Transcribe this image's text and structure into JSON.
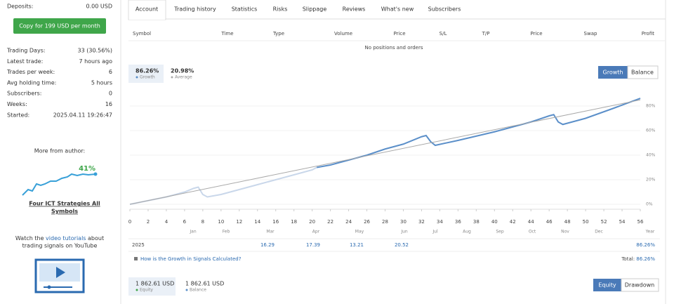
{
  "sidebar": {
    "deposits": {
      "label": "Deposits:",
      "value": "0.00 USD"
    },
    "copy_button": "Copy for 199 USD per month",
    "stats": [
      [
        "Trading Days:",
        "33 (30.56%)"
      ],
      [
        "Latest trade:",
        "7 hours ago"
      ],
      [
        "Trades per week:",
        "6"
      ],
      [
        "Avg holding time:",
        "5 hours"
      ],
      [
        "Subscribers:",
        "0"
      ],
      [
        "Weeks:",
        "16"
      ],
      [
        "Started:",
        "2025.04.11 19:26:47"
      ]
    ],
    "more_from_author": "More from author:",
    "author_signal": {
      "growth": "41%",
      "name_lines": [
        "Four ICT Strategies All",
        "Symbols"
      ]
    },
    "video_note": {
      "line1": [
        "Watch the ",
        "video tutorials",
        " about"
      ],
      "line2": "trading signals on YouTube"
    }
  },
  "tabs": [
    "Account",
    "Trading history",
    "Statistics",
    "Risks",
    "Slippage",
    "Reviews",
    "What's new",
    "Subscribers"
  ],
  "positions_table": {
    "columns": [
      "Symbol",
      "Time",
      "Type",
      "Volume",
      "Price",
      "S/L",
      "T/P",
      "Price",
      "Swap",
      "Profit"
    ],
    "empty_message": "No positions and orders"
  },
  "growth_summary": {
    "growth": {
      "value": "86.26%",
      "label": "Growth"
    },
    "average": {
      "value": "20.98%",
      "label": "Average"
    }
  },
  "chart_toggle": [
    "Growth",
    "Balance"
  ],
  "chart_data": {
    "type": "line",
    "series": [
      {
        "color": "#c9d7ea",
        "x": [
          0,
          2,
          4,
          6,
          7,
          7.5,
          8,
          8.5,
          10,
          12,
          14,
          16,
          18,
          20,
          20.5
        ],
        "values": [
          0,
          3,
          6,
          10,
          13,
          14,
          8,
          6,
          8,
          12,
          16,
          20,
          24,
          28,
          30
        ]
      },
      {
        "color": "#5b8fc9",
        "x": [
          20.5,
          22,
          24,
          26,
          28,
          30,
          32,
          32.5,
          33,
          33.5,
          36,
          40,
          44,
          46,
          46.5,
          47,
          47.5,
          50,
          53,
          56
        ],
        "values": [
          30,
          32,
          36,
          40,
          45,
          49,
          55,
          56,
          51,
          48,
          52,
          59,
          67,
          72,
          73,
          67,
          65,
          70,
          78,
          86.26
        ]
      },
      {
        "color": "#a9a9a9",
        "x": [
          0,
          56
        ],
        "values": [
          0,
          85
        ]
      }
    ],
    "xlim": [
      0,
      56
    ],
    "xticks": [
      0,
      2,
      4,
      6,
      8,
      10,
      12,
      14,
      16,
      18,
      20,
      22,
      24,
      26,
      28,
      30,
      32,
      34,
      36,
      38,
      40,
      42,
      44,
      46,
      48,
      50,
      52,
      54,
      56
    ],
    "ylim": [
      -4,
      90
    ],
    "yticks": [
      {
        "value": 0,
        "label": "0%"
      },
      {
        "value": 20,
        "label": "20%"
      },
      {
        "value": 40,
        "label": "40%"
      },
      {
        "value": 60,
        "label": "60%"
      },
      {
        "value": 80,
        "label": "80%"
      }
    ],
    "grid": true
  },
  "year_table": {
    "columns": [
      "Jan",
      "Feb",
      "Mar",
      "Apr",
      "May",
      "Jun",
      "Jul",
      "Aug",
      "Sep",
      "Oct",
      "Nov",
      "Dec",
      "Year"
    ],
    "rows": [
      {
        "year": "2025",
        "cells": [
          null,
          null,
          "16.29",
          "17.39",
          "13.21",
          "20.52",
          null,
          null,
          null,
          null,
          null,
          null,
          "86.26%"
        ]
      }
    ]
  },
  "growth_help": "How is the Growth in Signals Calculated?",
  "total": {
    "label": "Total:",
    "value": "86.26%"
  },
  "balance_summary": {
    "equity": {
      "value": "1 862.61 USD",
      "label": "Equity"
    },
    "balance": {
      "value": "1 862.61 USD",
      "label": "Balance"
    }
  },
  "balance_toggle": [
    "Equity",
    "Drawdown"
  ]
}
